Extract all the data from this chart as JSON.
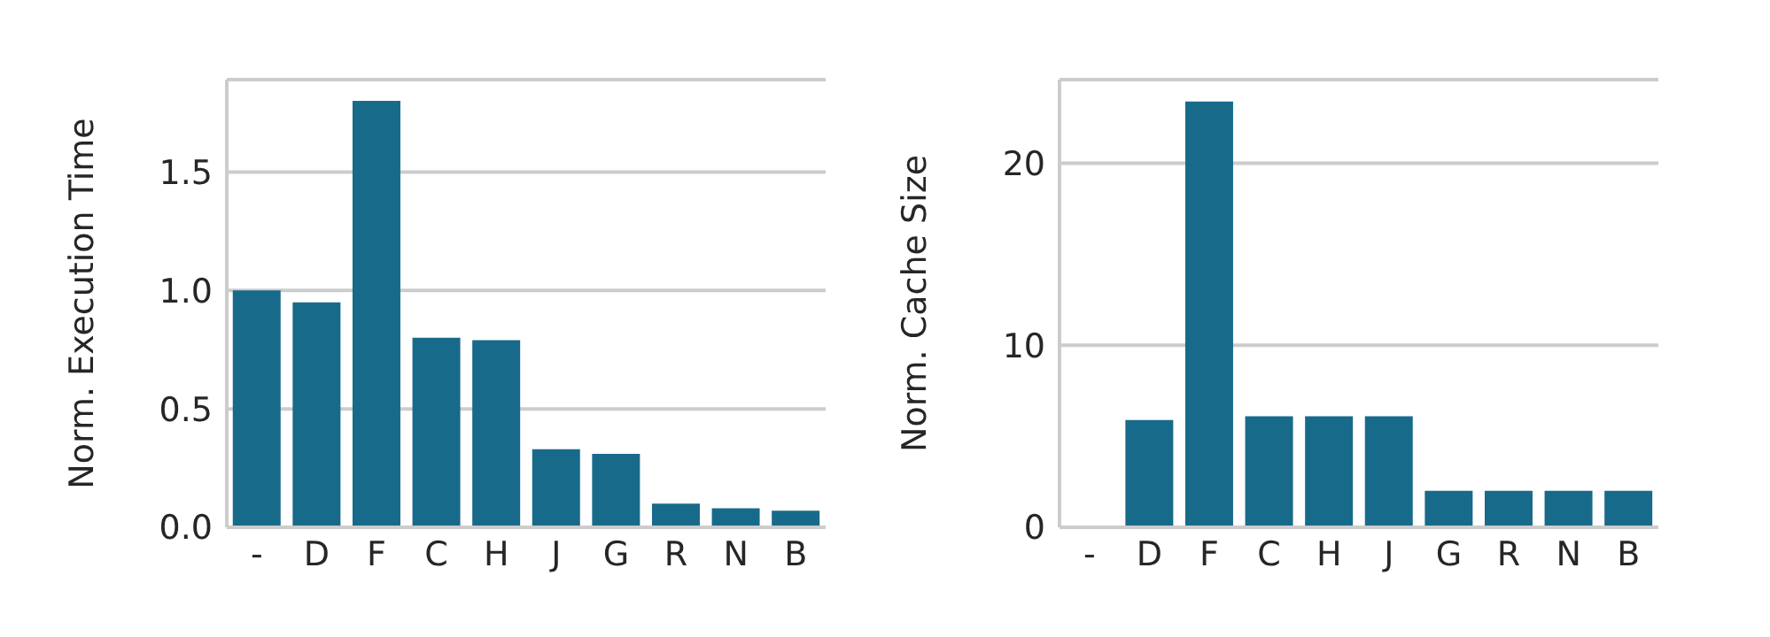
{
  "chart_data": [
    {
      "type": "bar",
      "ylabel": "Norm. Execution Time",
      "categories": [
        "-",
        "D",
        "F",
        "C",
        "H",
        "J",
        "G",
        "R",
        "N",
        "B"
      ],
      "values": [
        1.0,
        0.95,
        1.8,
        0.8,
        0.79,
        0.33,
        0.31,
        0.1,
        0.08,
        0.07
      ],
      "color": "#186a8a",
      "ylim": [
        0,
        1.89
      ],
      "yticks": [
        {
          "value": 0,
          "label": "0.0"
        },
        0.5,
        {
          "value": 1,
          "label": "1.0"
        },
        1.5
      ],
      "grid": "y"
    },
    {
      "type": "bar",
      "ylabel": "Norm. Cache Size",
      "categories": [
        "-",
        "D",
        "F",
        "C",
        "H",
        "J",
        "G",
        "R",
        "N",
        "B"
      ],
      "values": [
        0,
        5.9,
        23.4,
        6.1,
        6.1,
        6.1,
        2.0,
        2.0,
        2.0,
        2.0
      ],
      "color": "#186a8a",
      "ylim": [
        0,
        24.6
      ],
      "yticks": [
        0,
        10,
        20
      ],
      "grid": "y"
    }
  ]
}
